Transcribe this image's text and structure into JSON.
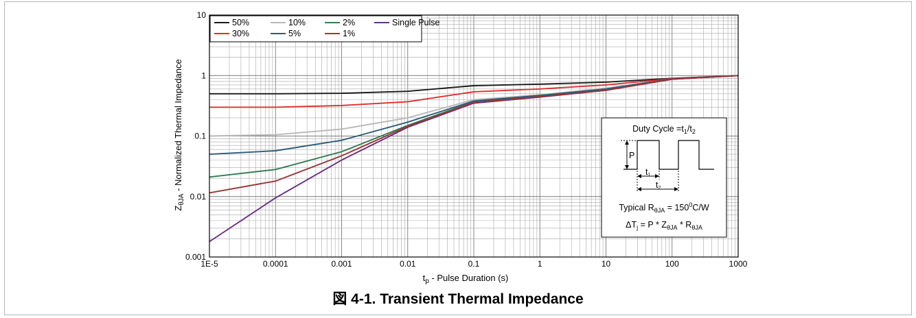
{
  "figure": {
    "caption_prefix": "図 4-1.",
    "caption_title": "Transient Thermal Impedance"
  },
  "chart_data": {
    "type": "line",
    "x_scale": "log",
    "y_scale": "log",
    "xlim": [
      1e-05,
      1000
    ],
    "ylim": [
      0.001,
      10
    ],
    "grid": true,
    "legend_position": "top-left",
    "xlabel_main": "t",
    "xlabel_sub": "p",
    "xlabel_rest": " - Pulse Duration (s)",
    "ylabel_main": "Z",
    "ylabel_sub": "θJA",
    "ylabel_rest": " - Normalized Thermal Impedance",
    "x_ticks": [
      {
        "value": 1e-05,
        "label": "1E-5"
      },
      {
        "value": 0.0001,
        "label": "0.0001"
      },
      {
        "value": 0.001,
        "label": "0.001"
      },
      {
        "value": 0.01,
        "label": "0.01"
      },
      {
        "value": 0.1,
        "label": "0.1"
      },
      {
        "value": 1,
        "label": "1"
      },
      {
        "value": 10,
        "label": "10"
      },
      {
        "value": 100,
        "label": "100"
      },
      {
        "value": 1000,
        "label": "1000"
      }
    ],
    "y_ticks": [
      {
        "value": 0.001,
        "label": "0.001"
      },
      {
        "value": 0.01,
        "label": "0.01"
      },
      {
        "value": 0.1,
        "label": "0.1"
      },
      {
        "value": 1,
        "label": "1"
      },
      {
        "value": 10,
        "label": "10"
      }
    ],
    "series": [
      {
        "name": "50%",
        "color": "#1a1a1a",
        "points": [
          [
            1e-05,
            0.5
          ],
          [
            0.0001,
            0.5
          ],
          [
            0.001,
            0.51
          ],
          [
            0.01,
            0.55
          ],
          [
            0.1,
            0.68
          ],
          [
            1,
            0.72
          ],
          [
            10,
            0.78
          ],
          [
            100,
            0.9
          ],
          [
            1000,
            1.0
          ]
        ]
      },
      {
        "name": "10%",
        "color": "#b8b8b8",
        "points": [
          [
            1e-05,
            0.1
          ],
          [
            0.0001,
            0.105
          ],
          [
            0.001,
            0.13
          ],
          [
            0.01,
            0.2
          ],
          [
            0.1,
            0.4
          ],
          [
            1,
            0.48
          ],
          [
            10,
            0.62
          ],
          [
            100,
            0.88
          ],
          [
            1000,
            1.0
          ]
        ]
      },
      {
        "name": "2%",
        "color": "#2e7d4f",
        "points": [
          [
            1e-05,
            0.021
          ],
          [
            0.0001,
            0.028
          ],
          [
            0.001,
            0.055
          ],
          [
            0.01,
            0.15
          ],
          [
            0.1,
            0.37
          ],
          [
            1,
            0.46
          ],
          [
            10,
            0.58
          ],
          [
            100,
            0.87
          ],
          [
            1000,
            1.0
          ]
        ]
      },
      {
        "name": "Single Pulse",
        "color": "#6a2c82",
        "points": [
          [
            1e-05,
            0.0018
          ],
          [
            0.0001,
            0.0095
          ],
          [
            0.001,
            0.04
          ],
          [
            0.01,
            0.14
          ],
          [
            0.1,
            0.35
          ],
          [
            1,
            0.44
          ],
          [
            10,
            0.57
          ],
          [
            100,
            0.87
          ],
          [
            1000,
            1.0
          ]
        ]
      },
      {
        "name": "30%",
        "color": "#e32c2c",
        "points": [
          [
            1e-05,
            0.3
          ],
          [
            0.0001,
            0.3
          ],
          [
            0.001,
            0.32
          ],
          [
            0.01,
            0.37
          ],
          [
            0.1,
            0.54
          ],
          [
            1,
            0.6
          ],
          [
            10,
            0.7
          ],
          [
            100,
            0.89
          ],
          [
            1000,
            1.0
          ]
        ]
      },
      {
        "name": "5%",
        "color": "#2b5d78",
        "points": [
          [
            1e-05,
            0.05
          ],
          [
            0.0001,
            0.057
          ],
          [
            0.001,
            0.085
          ],
          [
            0.01,
            0.17
          ],
          [
            0.1,
            0.38
          ],
          [
            1,
            0.47
          ],
          [
            10,
            0.6
          ],
          [
            100,
            0.88
          ],
          [
            1000,
            1.0
          ]
        ]
      },
      {
        "name": "1%",
        "color": "#9b3535",
        "points": [
          [
            1e-05,
            0.0115
          ],
          [
            0.0001,
            0.018
          ],
          [
            0.001,
            0.047
          ],
          [
            0.01,
            0.145
          ],
          [
            0.1,
            0.36
          ],
          [
            1,
            0.45
          ],
          [
            10,
            0.57
          ],
          [
            100,
            0.87
          ],
          [
            1000,
            1.0
          ]
        ]
      }
    ],
    "inset": {
      "duty_text": "Duty Cycle =t",
      "duty_sub1": "1",
      "duty_slash": "/t",
      "duty_sub2": "2",
      "p_label": "P",
      "t1_main": "t",
      "t1_sub": "1",
      "t2_main": "t",
      "t2_sub": "2",
      "typ_text": "Typical R",
      "typ_sub": "θJA",
      "typ_value": " = 150",
      "typ_sup": "0",
      "typ_unit": "C/W",
      "dt_main": "ΔT",
      "dt_sub": "j",
      "dt_eq": " = P * Z",
      "dt_sub2": "θJA",
      "dt_times": " * R",
      "dt_sub3": "θJA"
    }
  }
}
